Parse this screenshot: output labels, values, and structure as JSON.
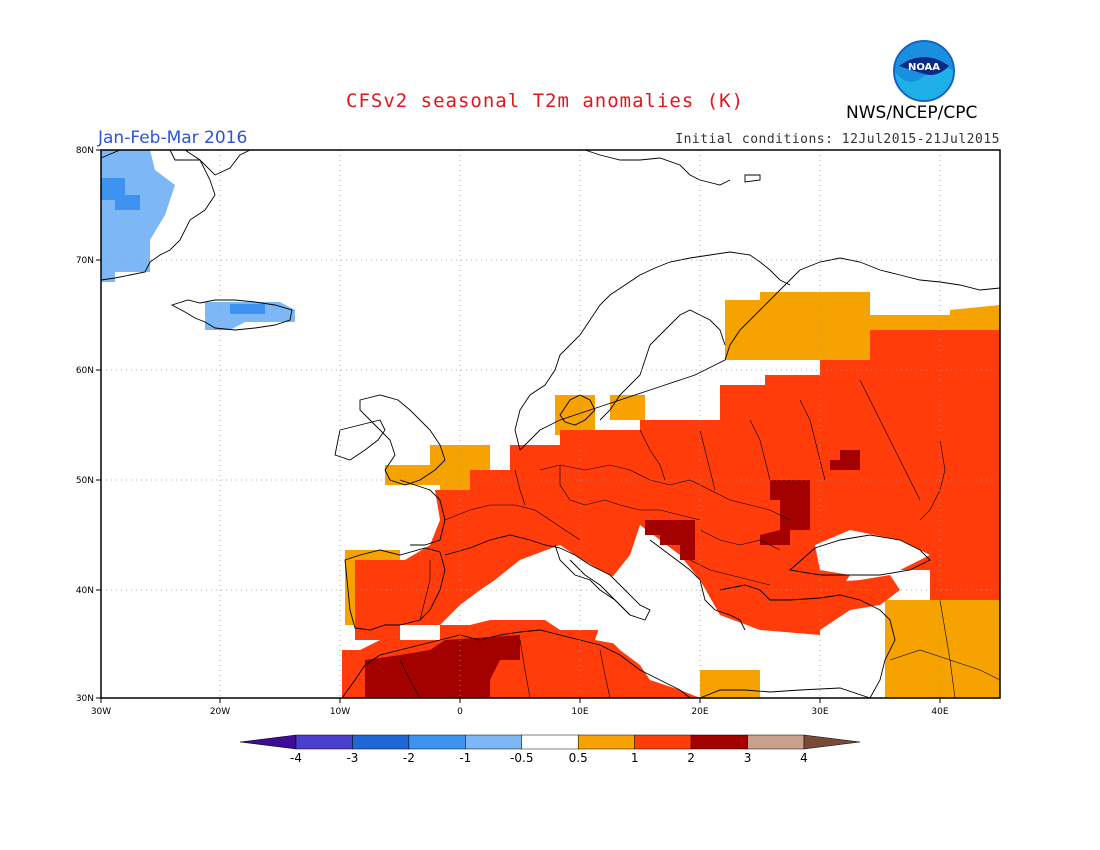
{
  "header": {
    "title": "CFSv2 seasonal T2m anomalies (K)",
    "period": "Jan-Feb-Mar 2016",
    "initial_conditions": "Initial conditions: 12Jul2015-21Jul2015",
    "agency": "NWS/NCEP/CPC",
    "logo_text": "NOAA"
  },
  "map": {
    "lon_range": [
      -30,
      45
    ],
    "lat_range": [
      30,
      80
    ],
    "lat_labels": [
      "30N",
      "40N",
      "50N",
      "60N",
      "70N",
      "80N"
    ],
    "lon_labels": [
      "30W",
      "20W",
      "10W",
      "0",
      "10E",
      "20E",
      "30E",
      "40E"
    ]
  },
  "colorbar": {
    "labels": [
      "-4",
      "-3",
      "-2",
      "-1",
      "-0.5",
      "0.5",
      "1",
      "2",
      "3",
      "4"
    ],
    "colors": [
      "#3c0e96",
      "#4b3fd0",
      "#1f66d6",
      "#3f93f0",
      "#7db7f5",
      "#ffffff",
      "#f6a200",
      "#ff3c0a",
      "#a30000",
      "#c8a08e",
      "#7a4a36"
    ]
  }
}
